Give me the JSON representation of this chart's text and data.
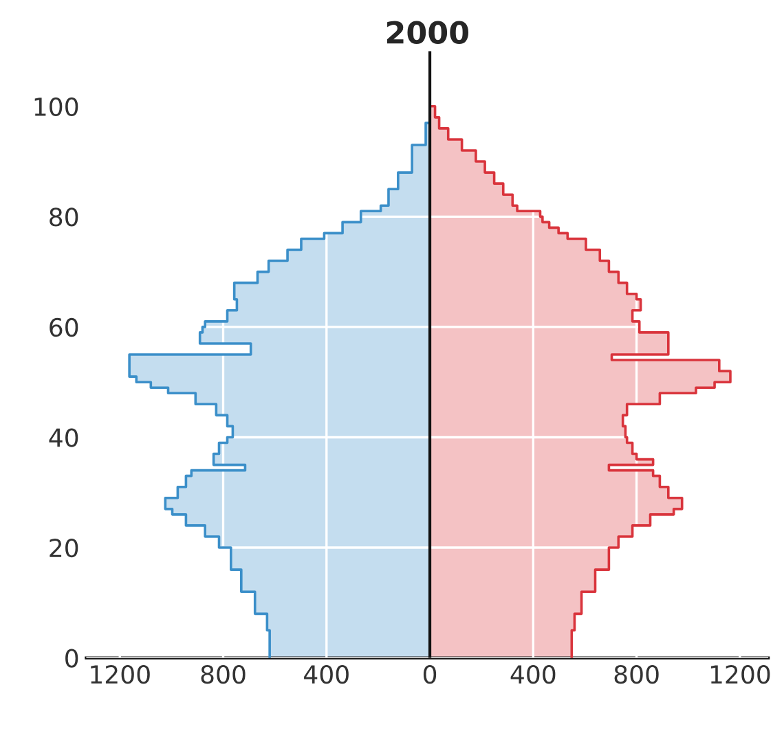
{
  "chart_data": {
    "type": "area",
    "orientation": "horizontal",
    "title": "2000",
    "series": [
      {
        "color": "#3b8fc9",
        "x": [
          0,
          5,
          8,
          12,
          16,
          20,
          22,
          24,
          26,
          27,
          29,
          31,
          33,
          34,
          35,
          37,
          39,
          40,
          42,
          44,
          46,
          48,
          49,
          50,
          51,
          55,
          57,
          59,
          60,
          61,
          62,
          63,
          65,
          68,
          70,
          72,
          74,
          76,
          77,
          79,
          81,
          82,
          85,
          88,
          93,
          97
        ],
        "values": [
          -620,
          -630,
          -677,
          -730,
          -770,
          -816,
          -870,
          -944,
          -997,
          -1024,
          -976,
          -944,
          -923,
          -715,
          -837,
          -816,
          -784,
          -763,
          -784,
          -827,
          -907,
          -1013,
          -1080,
          -1136,
          -1163,
          -693,
          -890,
          -880,
          -870,
          -784,
          -784,
          -747,
          -757,
          -667,
          -624,
          -551,
          -498,
          -409,
          -338,
          -267,
          -190,
          -160,
          -123,
          -69,
          -16,
          0
        ]
      },
      {
        "color": "#d9343c",
        "x": [
          0,
          5,
          8,
          12,
          16,
          20,
          22,
          24,
          26,
          27,
          29,
          31,
          33,
          34,
          35,
          36,
          37,
          39,
          40,
          42,
          44,
          46,
          48,
          49,
          50,
          52,
          54,
          55,
          59,
          61,
          63,
          65,
          66,
          68,
          70,
          72,
          74,
          76,
          77,
          78,
          79,
          80,
          81,
          82,
          84,
          86,
          88,
          90,
          92,
          94,
          96,
          98,
          100
        ],
        "values": [
          549,
          560,
          587,
          640,
          693,
          730,
          784,
          853,
          944,
          976,
          923,
          890,
          864,
          693,
          864,
          800,
          784,
          763,
          757,
          747,
          763,
          890,
          1030,
          1102,
          1163,
          1120,
          704,
          923,
          811,
          784,
          816,
          800,
          763,
          730,
          693,
          658,
          604,
          533,
          498,
          462,
          436,
          427,
          338,
          320,
          284,
          249,
          213,
          178,
          124,
          71,
          36,
          20,
          0
        ]
      }
    ],
    "xlim": [
      -1330,
      1310
    ],
    "xticks": [
      {
        "value": -1200,
        "label": "1200"
      },
      {
        "value": -800,
        "label": "800"
      },
      {
        "value": -400,
        "label": "400"
      },
      0,
      400,
      800,
      1200
    ],
    "ylim": [
      0,
      110
    ],
    "yticks": [
      0,
      20,
      40,
      60,
      80,
      100
    ],
    "grid": true,
    "ref_lines": [
      {
        "axis": "x",
        "value": 0,
        "color": "#111111"
      }
    ]
  }
}
